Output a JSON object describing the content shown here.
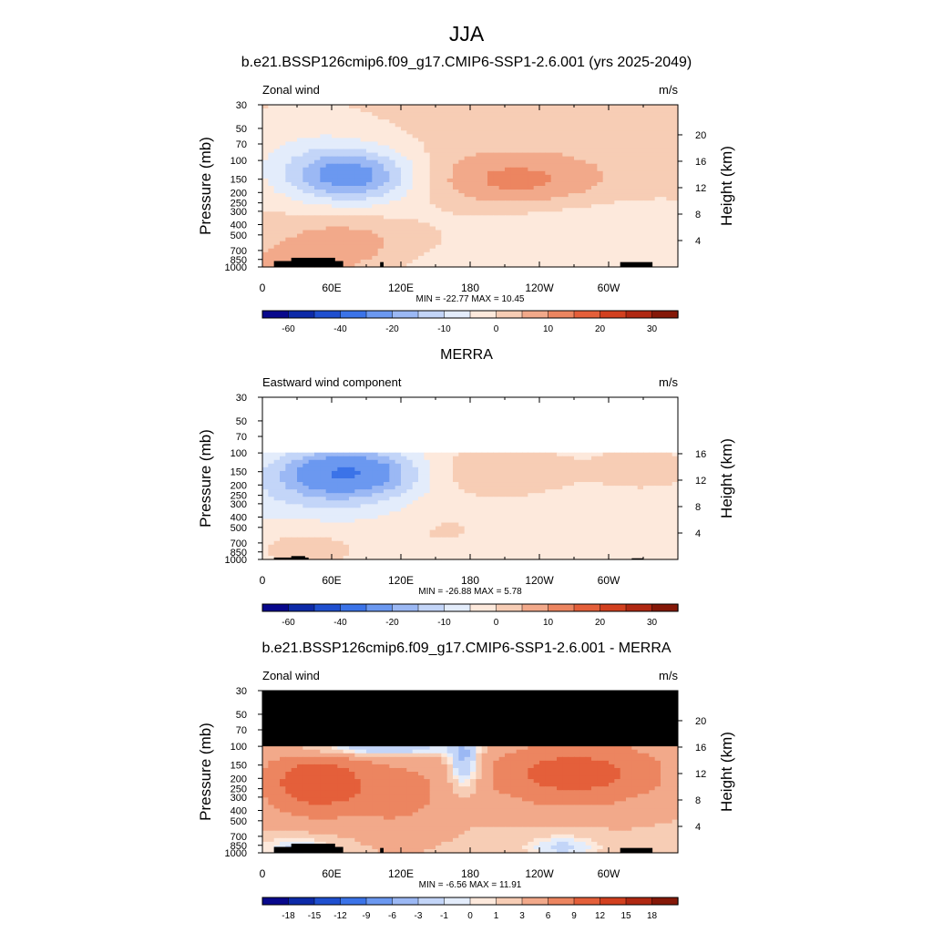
{
  "figure": {
    "title": "JJA"
  },
  "chart_data": [
    {
      "type": "heatmap",
      "title": "b.e21.BSSP126cmip6.f09_g17.CMIP6-SSP1-2.6.001 (yrs 2025-2049)",
      "left_label": "Zonal wind",
      "units": "m/s",
      "ylabel": "Pressure (mb)",
      "ylabel_right": "Height (km)",
      "x_ticks": [
        "0",
        "60E",
        "120E",
        "180",
        "120W",
        "60W"
      ],
      "y_ticks": [
        "30",
        "50",
        "70",
        "100",
        "150",
        "200",
        "250",
        "300",
        "400",
        "500",
        "700",
        "850",
        "1000"
      ],
      "height_ticks": [
        "4",
        "8",
        "12",
        "16",
        "20"
      ],
      "stats": "MIN = -22.77  MAX =  10.45",
      "colorbar_ticks": [
        "-60",
        "-40",
        "-20",
        "-10",
        "0",
        "10",
        "20",
        "30"
      ],
      "colorbar_levels": [
        -70,
        -60,
        -50,
        -40,
        -30,
        -20,
        -15,
        -10,
        -5,
        0,
        5,
        10,
        15,
        20,
        25,
        30,
        35
      ],
      "colors": [
        "#08088c",
        "#0d2aa8",
        "#1f4fcf",
        "#3b73e8",
        "#6b98f0",
        "#9bb8f4",
        "#c3d5f8",
        "#e3ecfb",
        "#fde9dc",
        "#f7cdb5",
        "#f2a98a",
        "#ec8560",
        "#e45f3a",
        "#d2401f",
        "#b02812",
        "#851808"
      ],
      "min": -22.77,
      "max": 10.45,
      "features": [
        {
          "lon": 78,
          "p": 140,
          "value": -22,
          "note": "easterly jet core"
        },
        {
          "lon": 225,
          "p": 150,
          "value": 10,
          "note": "westerly maximum"
        },
        {
          "lon": 70,
          "p": 650,
          "value": 7,
          "note": "low-level westerlies"
        }
      ]
    },
    {
      "type": "heatmap",
      "title": "MERRA",
      "left_label": "Eastward wind component",
      "units": "m/s",
      "ylabel": "Pressure (mb)",
      "ylabel_right": "Height (km)",
      "x_ticks": [
        "0",
        "60E",
        "120E",
        "180",
        "120W",
        "60W"
      ],
      "y_ticks": [
        "30",
        "50",
        "70",
        "100",
        "150",
        "200",
        "250",
        "300",
        "400",
        "500",
        "700",
        "850",
        "1000"
      ],
      "height_ticks": [
        "4",
        "8",
        "12",
        "16"
      ],
      "stats": "MIN = -26.88  MAX =   5.78",
      "colorbar_ticks": [
        "-60",
        "-40",
        "-20",
        "-10",
        "0",
        "10",
        "20",
        "30"
      ],
      "colorbar_levels": [
        -70,
        -60,
        -50,
        -40,
        -30,
        -20,
        -15,
        -10,
        -5,
        0,
        5,
        10,
        15,
        20,
        25,
        30,
        35
      ],
      "colors": [
        "#08088c",
        "#0d2aa8",
        "#1f4fcf",
        "#3b73e8",
        "#6b98f0",
        "#9bb8f4",
        "#c3d5f8",
        "#e3ecfb",
        "#fde9dc",
        "#f7cdb5",
        "#f2a98a",
        "#ec8560",
        "#e45f3a",
        "#d2401f",
        "#b02812",
        "#851808"
      ],
      "min": -26.88,
      "max": 5.78,
      "data_top_pressure": 100,
      "features": [
        {
          "lon": 75,
          "p": 150,
          "value": -26,
          "note": "easterly jet core"
        },
        {
          "lon": 200,
          "p": 150,
          "value": 5,
          "note": "westerly maximum"
        }
      ]
    },
    {
      "type": "heatmap",
      "title": "b.e21.BSSP126cmip6.f09_g17.CMIP6-SSP1-2.6.001 - MERRA",
      "left_label": "Zonal wind",
      "units": "m/s",
      "ylabel": "Pressure (mb)",
      "ylabel_right": "Height (km)",
      "x_ticks": [
        "0",
        "60E",
        "120E",
        "180",
        "120W",
        "60W"
      ],
      "y_ticks": [
        "30",
        "50",
        "70",
        "100",
        "150",
        "200",
        "250",
        "300",
        "400",
        "500",
        "700",
        "850",
        "1000"
      ],
      "height_ticks": [
        "4",
        "8",
        "12",
        "16",
        "20"
      ],
      "stats": "MIN =  -6.56  MAX =  11.91",
      "colorbar_ticks": [
        "-18",
        "-15",
        "-12",
        "-9",
        "-6",
        "-3",
        "-1",
        "0",
        "1",
        "3",
        "6",
        "9",
        "12",
        "15",
        "18"
      ],
      "colorbar_levels": [
        -21,
        -18,
        -15,
        -12,
        -9,
        -6,
        -3,
        -1,
        0,
        1,
        3,
        6,
        9,
        12,
        15,
        18,
        21
      ],
      "colors": [
        "#08088c",
        "#0d2aa8",
        "#1f4fcf",
        "#3b73e8",
        "#6b98f0",
        "#9bb8f4",
        "#c3d5f8",
        "#e3ecfb",
        "#fde9dc",
        "#f7cdb5",
        "#f2a98a",
        "#ec8560",
        "#e45f3a",
        "#d2401f",
        "#b02812",
        "#851808"
      ],
      "min": -6.56,
      "max": 11.91,
      "data_top_pressure": 100,
      "features": [
        {
          "lon": 50,
          "p": 200,
          "value": 11,
          "note": "positive difference maximum"
        },
        {
          "lon": 270,
          "p": 170,
          "value": 9,
          "note": "positive difference"
        },
        {
          "lon": 100,
          "p": 110,
          "value": -6,
          "note": "negative difference near top"
        }
      ]
    }
  ]
}
